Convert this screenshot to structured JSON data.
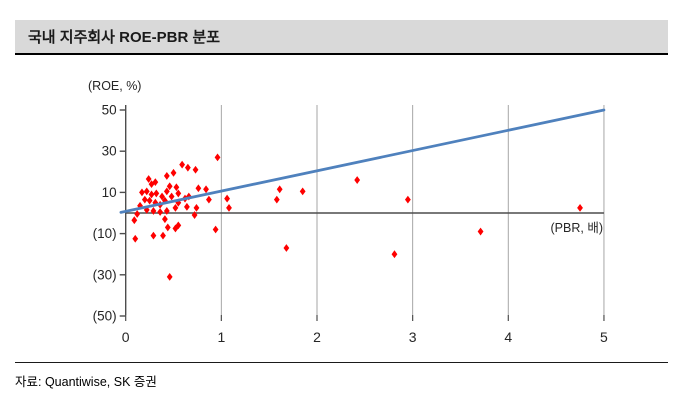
{
  "header": {
    "title": "국내 지주회사 ROE-PBR 분포"
  },
  "footer": {
    "source": "자료: Quantiwise, SK 증권"
  },
  "colors": {
    "title_bar_bg": "#d9d9d9",
    "point_red": "#fe0000",
    "trend_blue": "#4f81bd",
    "gridline_gray": "#a6a6a6",
    "axis_gray": "#4d4d4d",
    "tick_text": "#262626"
  },
  "chart_data": {
    "type": "scatter",
    "title": "국내 지주회사 ROE-PBR 분포",
    "xlabel": "(PBR, 배)",
    "ylabel": "(ROE, %)",
    "xlim": [
      0,
      5
    ],
    "ylim": [
      -50,
      50
    ],
    "xticks": [
      "0",
      "1",
      "2",
      "3",
      "4",
      "5"
    ],
    "xtick_values": [
      0,
      1,
      2,
      3,
      4,
      5
    ],
    "yticks": [
      "50",
      "30",
      "10",
      "(10)",
      "(30)",
      "(50)"
    ],
    "ytick_values": [
      50,
      30,
      10,
      -10,
      -30,
      -50
    ],
    "grid": "vertical-only",
    "legend": "none",
    "marker": "diamond",
    "series": [
      {
        "name": "지주회사 ROE-PBR",
        "type": "scatter",
        "color": "#fe0000",
        "points": [
          [
            0.96,
            27
          ],
          [
            0.59,
            23.5
          ],
          [
            0.65,
            22
          ],
          [
            0.73,
            21
          ],
          [
            0.5,
            19.5
          ],
          [
            0.43,
            18
          ],
          [
            0.24,
            16.5
          ],
          [
            0.31,
            15
          ],
          [
            0.27,
            14
          ],
          [
            0.46,
            13
          ],
          [
            0.53,
            12.5
          ],
          [
            0.76,
            12
          ],
          [
            0.84,
            11.5
          ],
          [
            0.43,
            10.5
          ],
          [
            0.22,
            10.5
          ],
          [
            0.17,
            10
          ],
          [
            0.55,
            9.5
          ],
          [
            0.32,
            9.5
          ],
          [
            0.27,
            9
          ],
          [
            0.38,
            8
          ],
          [
            0.48,
            8
          ],
          [
            0.66,
            8
          ],
          [
            0.62,
            7
          ],
          [
            1.06,
            7
          ],
          [
            0.2,
            6.5
          ],
          [
            0.87,
            6.5
          ],
          [
            0.25,
            6
          ],
          [
            0.41,
            6
          ],
          [
            0.31,
            5
          ],
          [
            0.55,
            5
          ],
          [
            0.36,
            4
          ],
          [
            0.15,
            3.5
          ],
          [
            0.64,
            3
          ],
          [
            0.52,
            2.5
          ],
          [
            0.74,
            2.5
          ],
          [
            1.08,
            2.5
          ],
          [
            0.22,
            1.5
          ],
          [
            0.29,
            1
          ],
          [
            0.43,
            1
          ],
          [
            0.36,
            0.5
          ],
          [
            0.12,
            -0.5
          ],
          [
            0.72,
            -1
          ],
          [
            0.09,
            -3.5
          ],
          [
            0.41,
            -3
          ],
          [
            0.44,
            -7
          ],
          [
            0.52,
            -7.5
          ],
          [
            0.55,
            -6
          ],
          [
            0.94,
            -8
          ],
          [
            0.1,
            -12.5
          ],
          [
            0.29,
            -11
          ],
          [
            0.39,
            -11
          ],
          [
            0.46,
            -31
          ],
          [
            1.58,
            6.5
          ],
          [
            1.61,
            11.5
          ],
          [
            1.85,
            10.5
          ],
          [
            2.42,
            16
          ],
          [
            2.95,
            6.5
          ],
          [
            1.68,
            -17
          ],
          [
            2.81,
            -20
          ],
          [
            3.71,
            -9
          ],
          [
            4.75,
            2.5
          ]
        ]
      },
      {
        "name": "추세선",
        "type": "line",
        "color": "#4f81bd",
        "points": [
          [
            -0.05,
            0.3
          ],
          [
            5.0,
            50.0
          ]
        ]
      }
    ]
  }
}
